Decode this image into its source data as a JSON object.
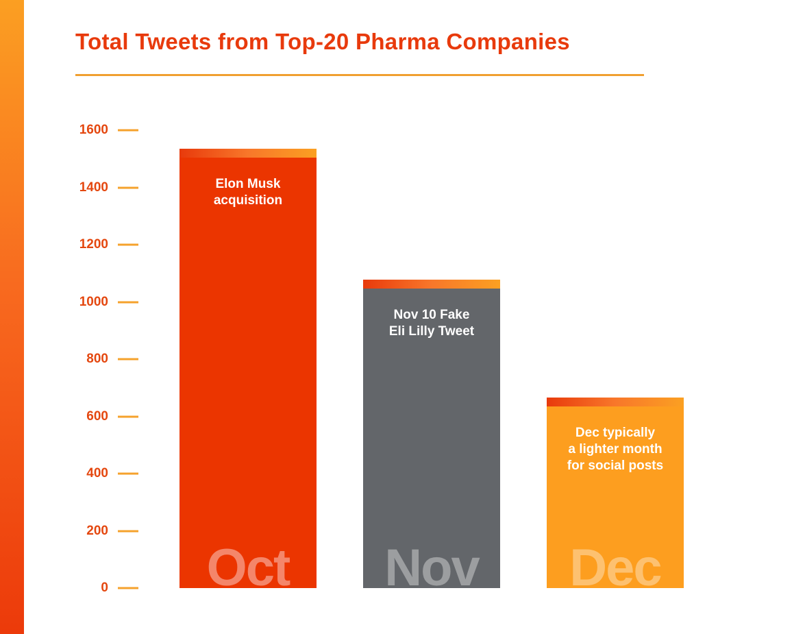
{
  "title": "Total Tweets from Top-20 Pharma Companies",
  "colors": {
    "accent_red": "#eb3500",
    "accent_orange": "#fd9e1f",
    "gray": "#63666a",
    "axis_tick": "#f5a22c",
    "title_text": "#e83a0c"
  },
  "y_axis": {
    "ticks": [
      "1600",
      "1400",
      "1200",
      "1000",
      "800",
      "600",
      "400",
      "200",
      "0"
    ]
  },
  "bars": [
    {
      "month": "Oct",
      "note": "Elon Musk\nacquisition",
      "value": 1535
    },
    {
      "month": "Nov",
      "note": "Nov 10 Fake\nEli Lilly Tweet",
      "value": 1078
    },
    {
      "month": "Dec",
      "note": "Dec typically\na lighter month\nfor social posts",
      "value": 666
    }
  ],
  "chart_data": {
    "type": "bar",
    "title": "Total Tweets from Top-20 Pharma Companies",
    "categories": [
      "Oct",
      "Nov",
      "Dec"
    ],
    "values": [
      1535,
      1078,
      666
    ],
    "annotations": [
      "Elon Musk acquisition",
      "Nov 10 Fake Eli Lilly Tweet",
      "Dec typically a lighter month for social posts"
    ],
    "bar_colors": [
      "#eb3500",
      "#63666a",
      "#fd9e1f"
    ],
    "xlabel": "",
    "ylabel": "",
    "ylim": [
      0,
      1600
    ],
    "yticks": [
      0,
      200,
      400,
      600,
      800,
      1000,
      1200,
      1400,
      1600
    ],
    "grid": false,
    "legend": "none"
  }
}
